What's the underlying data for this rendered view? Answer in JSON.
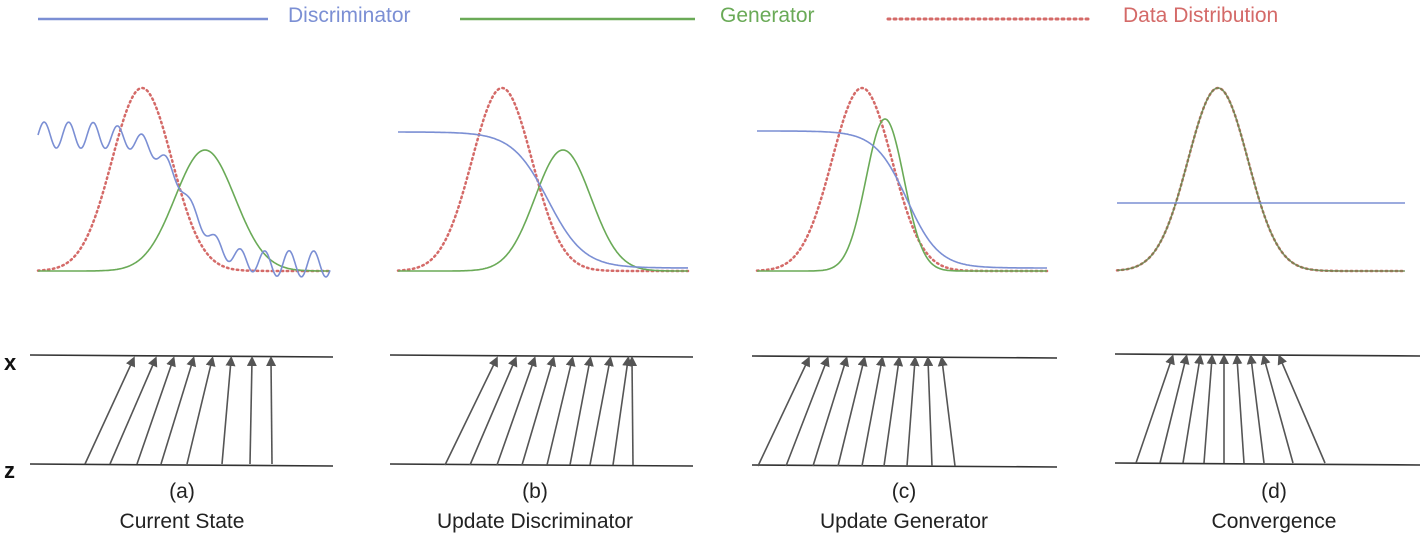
{
  "legend": [
    {
      "label": "Discriminator",
      "color": "#7b8fd4",
      "style": "solid"
    },
    {
      "label": "Generator",
      "color": "#6aaa57",
      "style": "solid"
    },
    {
      "label": "Data Distribution",
      "color": "#d46a68",
      "style": "dotted"
    }
  ],
  "axes": {
    "top_label": "x",
    "bottom_label": "z"
  },
  "panels": [
    {
      "letter": "(a)",
      "title": "Current State"
    },
    {
      "letter": "(b)",
      "title": "Update Discriminator"
    },
    {
      "letter": "(c)",
      "title": "Update Generator"
    },
    {
      "letter": "(d)",
      "title": "Convergence"
    }
  ],
  "colors": {
    "line": "#333333",
    "arrow": "#555555"
  }
}
